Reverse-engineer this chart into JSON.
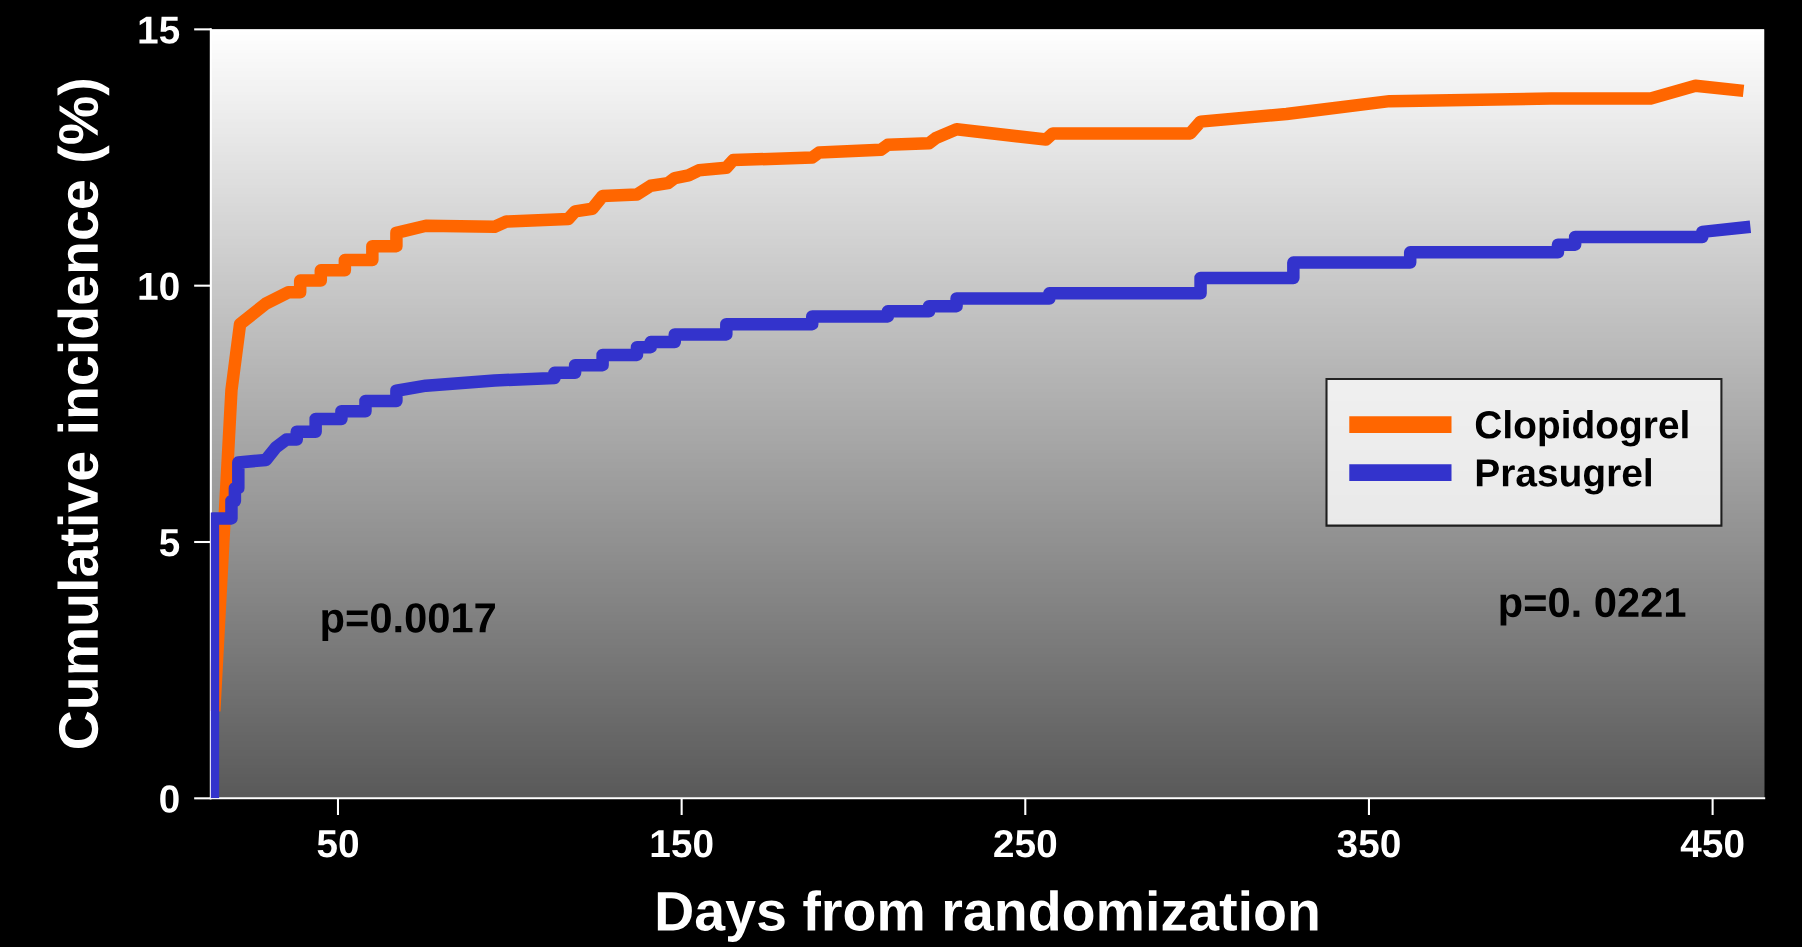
{
  "chart_data": {
    "type": "line",
    "xlabel": "Days from randomization",
    "ylabel": "Cumulative incidence (%)",
    "xlim": [
      13,
      465
    ],
    "ylim": [
      0,
      15
    ],
    "xticks": [
      50,
      150,
      250,
      350,
      450
    ],
    "yticks": [
      0,
      5,
      10,
      15
    ],
    "grid": false,
    "legend": "right",
    "marker": "none",
    "line_style": "solid",
    "annotations": [
      "p=0.0017",
      "p=0. 0221"
    ],
    "series": [
      {
        "name": "Clopidogrel",
        "color": "#ff6600",
        "x": [
          14,
          19,
          21.5,
          29,
          35.5,
          39,
          39,
          45,
          45,
          52,
          52,
          60,
          60,
          67,
          67,
          75.6,
          95.6,
          99,
          117,
          119,
          124,
          127,
          137,
          141,
          146,
          148,
          152,
          155,
          163,
          165,
          188,
          190,
          208,
          210,
          222,
          224,
          230,
          256,
          258,
          298,
          301,
          326,
          356,
          403,
          432,
          445,
          459
        ],
        "values": [
          1.7,
          7.96,
          9.25,
          9.65,
          9.87,
          9.87,
          10.1,
          10.1,
          10.3,
          10.3,
          10.5,
          10.5,
          10.77,
          10.77,
          11.03,
          11.17,
          11.15,
          11.25,
          11.3,
          11.45,
          11.5,
          11.75,
          11.78,
          11.95,
          12.0,
          12.1,
          12.15,
          12.25,
          12.3,
          12.45,
          12.5,
          12.6,
          12.65,
          12.75,
          12.78,
          12.88,
          13.05,
          12.85,
          12.97,
          12.97,
          13.2,
          13.35,
          13.6,
          13.65,
          13.65,
          13.9,
          13.8
        ]
      },
      {
        "name": "Prasugrel",
        "color": "#3333cc",
        "x": [
          13.6,
          13.6,
          19,
          19,
          20,
          20,
          21,
          21,
          29,
          32,
          35,
          38,
          38,
          43.5,
          43.5,
          51,
          51,
          58,
          58,
          67,
          67,
          75.6,
          95.6,
          113,
          113,
          119,
          119,
          127,
          127,
          137,
          137,
          141,
          141,
          148,
          148,
          163,
          163,
          188,
          188,
          210,
          210,
          222,
          222,
          230,
          230,
          257,
          257,
          301,
          301,
          328,
          328,
          362,
          362,
          405,
          405,
          410,
          410,
          447,
          447,
          461
        ],
        "values": [
          0,
          5.46,
          5.46,
          5.8,
          5.8,
          6.05,
          6.05,
          6.55,
          6.6,
          6.85,
          7.0,
          7.0,
          7.15,
          7.15,
          7.4,
          7.4,
          7.55,
          7.55,
          7.75,
          7.75,
          7.95,
          8.05,
          8.15,
          8.2,
          8.3,
          8.3,
          8.45,
          8.45,
          8.65,
          8.65,
          8.8,
          8.8,
          8.9,
          8.9,
          9.05,
          9.05,
          9.25,
          9.25,
          9.4,
          9.4,
          9.5,
          9.5,
          9.6,
          9.6,
          9.75,
          9.75,
          9.85,
          9.85,
          10.15,
          10.15,
          10.45,
          10.45,
          10.65,
          10.65,
          10.8,
          10.8,
          10.95,
          10.95,
          11.05,
          11.15
        ]
      }
    ]
  }
}
